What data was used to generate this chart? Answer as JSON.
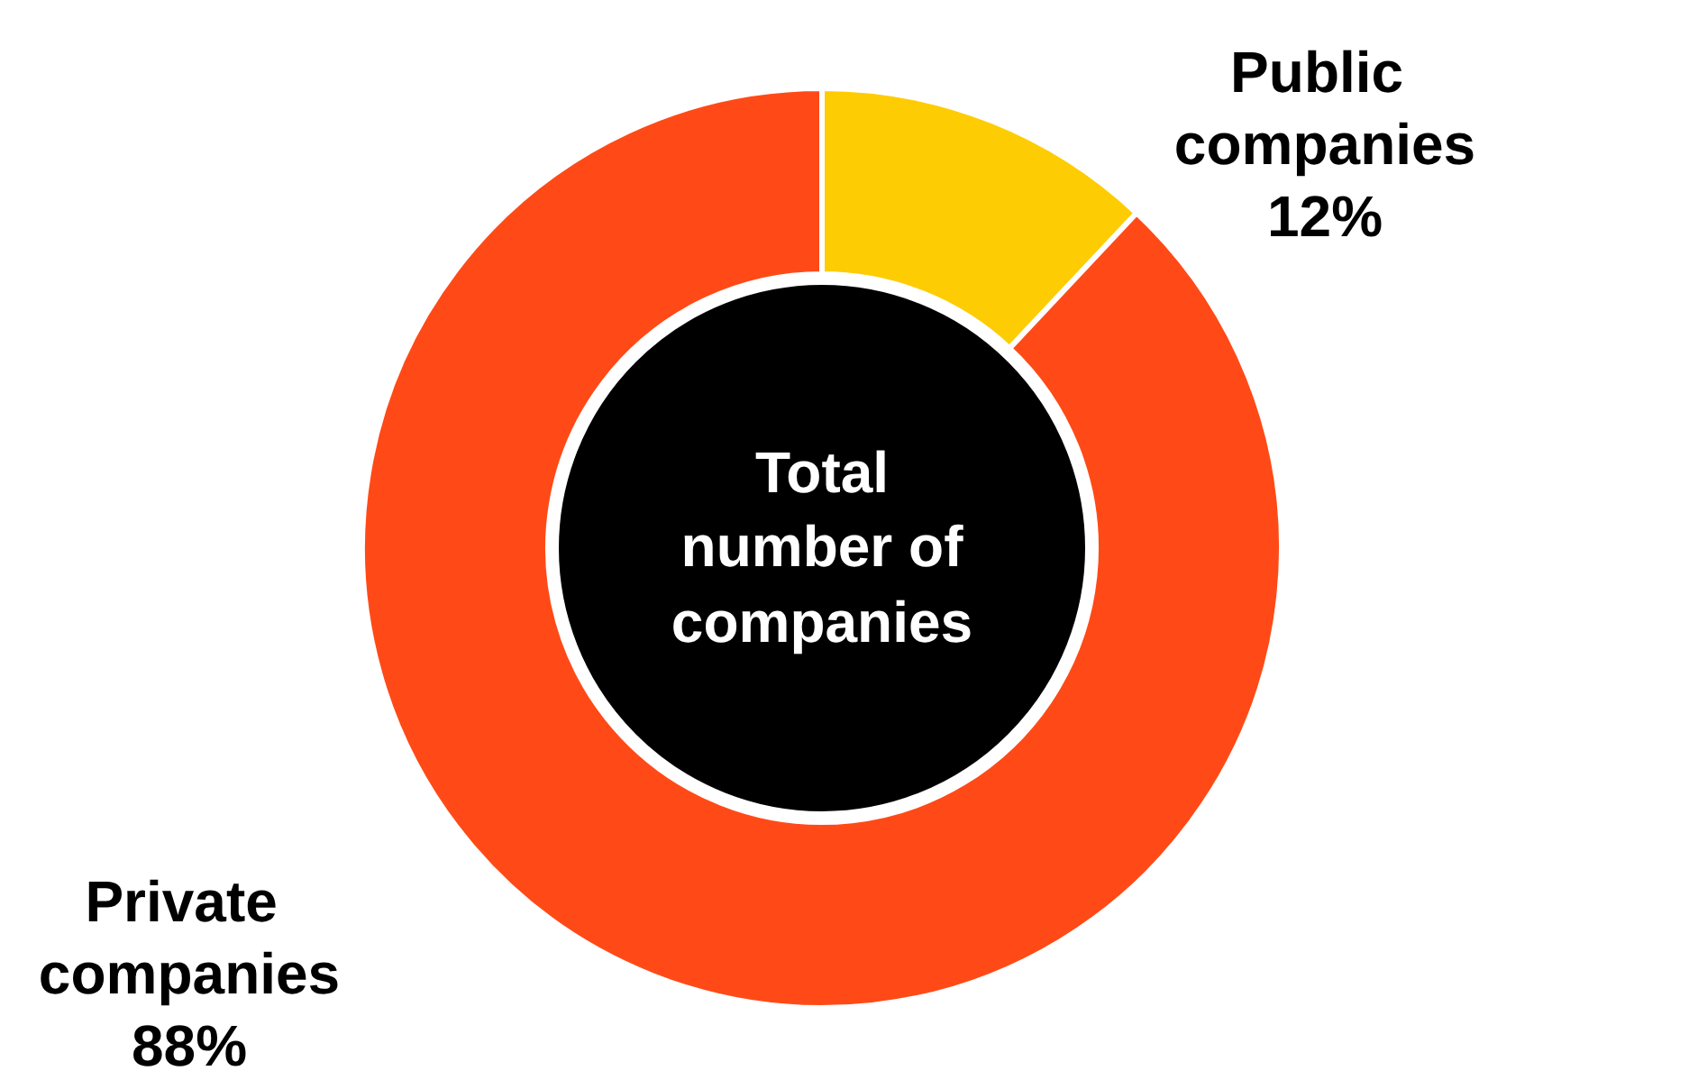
{
  "chart_data": {
    "type": "donut",
    "title": "Total number of companies",
    "categories": [
      "Public companies",
      "Private companies"
    ],
    "values": [
      12,
      88
    ],
    "colors": [
      "#fecc02",
      "#ff4a17"
    ],
    "value_labels": [
      "12%",
      "88%"
    ],
    "legend": false
  }
}
